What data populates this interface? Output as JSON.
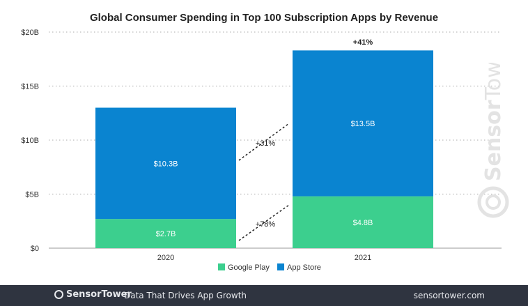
{
  "chart_data": {
    "type": "bar",
    "stacked": true,
    "title": "Global Consumer Spending in Top 100 Subscription Apps by Revenue",
    "categories": [
      "2020",
      "2021"
    ],
    "series": [
      {
        "name": "Google Play",
        "values": [
          2.7,
          4.8
        ],
        "labels": [
          "$2.7B",
          "$4.8B"
        ],
        "color": "#3ccf8e"
      },
      {
        "name": "App Store",
        "values": [
          10.3,
          13.5
        ],
        "labels": [
          "$10.3B",
          "$13.5B"
        ],
        "color": "#0a84d0"
      }
    ],
    "yticks": [
      0,
      5,
      10,
      15,
      20
    ],
    "ytick_labels": [
      "$0",
      "$5B",
      "$10B",
      "$15B",
      "$20B"
    ],
    "ylim": [
      0,
      20
    ],
    "grid": true,
    "legend": "bottom",
    "annotations": {
      "app_store_growth": "+31%",
      "google_play_growth": "+78%",
      "total_growth": "+41%"
    }
  },
  "footer": {
    "brand": "SensorTower",
    "tagline": "Data That Drives App Growth",
    "url": "sensortower.com"
  },
  "watermark": "SensorTower"
}
